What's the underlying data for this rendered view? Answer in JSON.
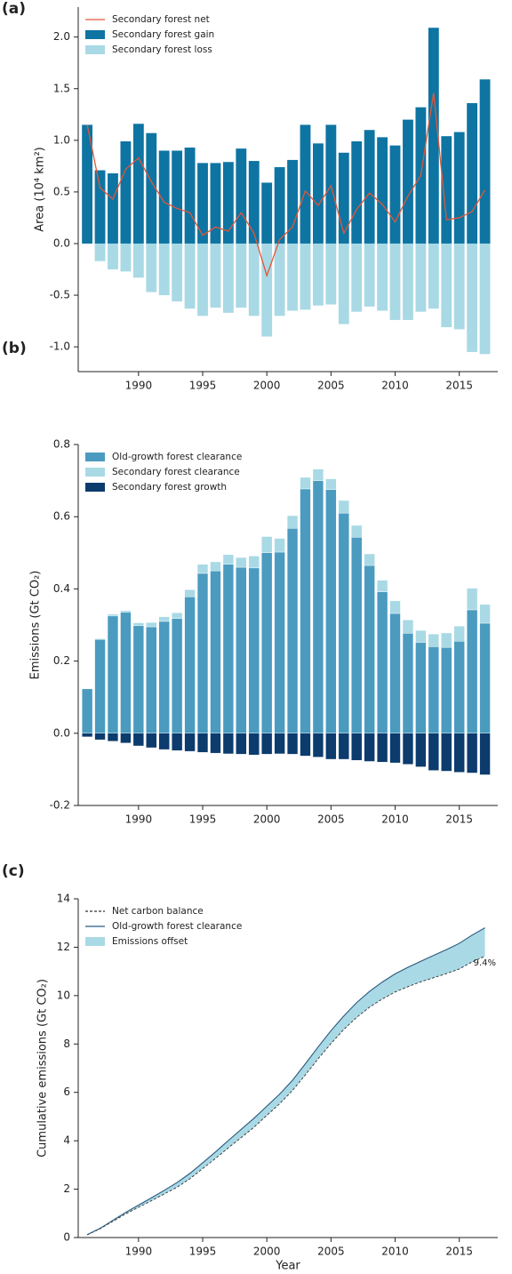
{
  "chart_data": [
    {
      "type": "bar",
      "label": "(a)",
      "ylabel": "Area (10⁴ km²)",
      "x": [
        1986,
        1987,
        1988,
        1989,
        1990,
        1991,
        1992,
        1993,
        1994,
        1995,
        1996,
        1997,
        1998,
        1999,
        2000,
        2001,
        2002,
        2003,
        2004,
        2005,
        2006,
        2007,
        2008,
        2009,
        2010,
        2011,
        2012,
        2013,
        2014,
        2015,
        2016,
        2017
      ],
      "xlim": [
        1985.3,
        2018
      ],
      "xticks": [
        1990,
        1995,
        2000,
        2005,
        2010,
        2015
      ],
      "ylim": [
        -1.24,
        2.29
      ],
      "yticks": [
        {
          "value": 2,
          "label": "2.0"
        },
        1.5,
        {
          "value": 1,
          "label": "1.0"
        },
        0.5,
        {
          "value": 0,
          "label": "0.0"
        },
        -0.5,
        {
          "value": -1,
          "label": "-1.0"
        }
      ],
      "series": [
        {
          "name": "Secondary forest net",
          "type": "line",
          "color": "#e0573a",
          "values": [
            1.15,
            0.54,
            0.43,
            0.72,
            0.83,
            0.6,
            0.4,
            0.34,
            0.3,
            0.08,
            0.16,
            0.12,
            0.3,
            0.1,
            -0.31,
            0.04,
            0.16,
            0.51,
            0.37,
            0.56,
            0.1,
            0.33,
            0.49,
            0.38,
            0.21,
            0.46,
            0.66,
            1.46,
            0.23,
            0.25,
            0.31,
            0.52
          ]
        },
        {
          "name": "Secondary forest gain",
          "type": "bar",
          "color": "#0e74a2",
          "values": [
            1.15,
            0.71,
            0.68,
            0.99,
            1.16,
            1.07,
            0.9,
            0.9,
            0.93,
            0.78,
            0.78,
            0.79,
            0.92,
            0.8,
            0.59,
            0.74,
            0.81,
            1.15,
            0.97,
            1.15,
            0.88,
            0.99,
            1.1,
            1.03,
            0.95,
            1.2,
            1.32,
            2.09,
            1.04,
            1.08,
            1.36,
            1.59
          ]
        },
        {
          "name": "Secondary forest loss",
          "type": "bar",
          "color": "#a9d9e5",
          "values": [
            0,
            -0.17,
            -0.25,
            -0.27,
            -0.33,
            -0.47,
            -0.5,
            -0.56,
            -0.63,
            -0.7,
            -0.62,
            -0.67,
            -0.62,
            -0.7,
            -0.9,
            -0.7,
            -0.65,
            -0.64,
            -0.6,
            -0.59,
            -0.78,
            -0.66,
            -0.61,
            -0.65,
            -0.74,
            -0.74,
            -0.66,
            -0.63,
            -0.81,
            -0.83,
            -1.05,
            -1.07
          ]
        }
      ]
    },
    {
      "type": "stacked_bar",
      "label": "(b)",
      "ylabel": "Emissions (Gt CO₂)",
      "x": [
        1986,
        1987,
        1988,
        1989,
        1990,
        1991,
        1992,
        1993,
        1994,
        1995,
        1996,
        1997,
        1998,
        1999,
        2000,
        2001,
        2002,
        2003,
        2004,
        2005,
        2006,
        2007,
        2008,
        2009,
        2010,
        2011,
        2012,
        2013,
        2014,
        2015,
        2016,
        2017
      ],
      "xlim": [
        1985.3,
        2018
      ],
      "xticks": [
        1990,
        1995,
        2000,
        2005,
        2010,
        2015
      ],
      "ylim": [
        -0.2,
        0.8
      ],
      "yticks": [
        0.8,
        0.6,
        0.4,
        0.2,
        {
          "value": 0,
          "label": "0.0"
        },
        -0.2
      ],
      "series": [
        {
          "name": "Old-growth forest clearance",
          "type": "bar",
          "color": "#4a9bbf",
          "values": [
            0.123,
            0.26,
            0.325,
            0.335,
            0.298,
            0.295,
            0.31,
            0.318,
            0.378,
            0.443,
            0.45,
            0.468,
            0.46,
            0.458,
            0.5,
            0.502,
            0.568,
            0.677,
            0.7,
            0.675,
            0.61,
            0.543,
            0.465,
            0.392,
            0.332,
            0.277,
            0.252,
            0.24,
            0.238,
            0.255,
            0.342,
            0.305
          ]
        },
        {
          "name": "Secondary forest clearance",
          "type": "bar",
          "color": "#a9d9e5",
          "values": [
            0,
            0.002,
            0.005,
            0.005,
            0.008,
            0.012,
            0.013,
            0.016,
            0.02,
            0.025,
            0.025,
            0.027,
            0.027,
            0.033,
            0.045,
            0.038,
            0.035,
            0.032,
            0.032,
            0.03,
            0.035,
            0.033,
            0.032,
            0.032,
            0.035,
            0.037,
            0.033,
            0.035,
            0.04,
            0.042,
            0.06,
            0.052
          ]
        },
        {
          "name": "Secondary forest growth",
          "type": "bar",
          "color": "#0c3b6d",
          "values": [
            -0.01,
            -0.018,
            -0.022,
            -0.027,
            -0.035,
            -0.04,
            -0.045,
            -0.048,
            -0.05,
            -0.053,
            -0.055,
            -0.057,
            -0.058,
            -0.06,
            -0.058,
            -0.057,
            -0.058,
            -0.063,
            -0.066,
            -0.072,
            -0.072,
            -0.075,
            -0.078,
            -0.08,
            -0.082,
            -0.086,
            -0.093,
            -0.103,
            -0.105,
            -0.108,
            -0.11,
            -0.115
          ]
        }
      ]
    },
    {
      "type": "area",
      "label": "(c)",
      "ylabel": "Cumulative emissions (Gt CO₂)",
      "xlabel": "Year",
      "x": [
        1986,
        1987,
        1988,
        1989,
        1990,
        1991,
        1992,
        1993,
        1994,
        1995,
        1996,
        1997,
        1998,
        1999,
        2000,
        2001,
        2002,
        2003,
        2004,
        2005,
        2006,
        2007,
        2008,
        2009,
        2010,
        2011,
        2012,
        2013,
        2014,
        2015,
        2016,
        2017
      ],
      "xlim": [
        1985.3,
        2018
      ],
      "xticks": [
        1990,
        1995,
        2000,
        2005,
        2010,
        2015
      ],
      "ylim": [
        0,
        14
      ],
      "yticks": [
        0,
        2,
        4,
        6,
        8,
        10,
        12,
        14
      ],
      "series": [
        {
          "name": "Net carbon balance",
          "type": "line",
          "linestyle": "dashed",
          "color": "#333333",
          "values": [
            0.11,
            0.36,
            0.67,
            0.98,
            1.25,
            1.52,
            1.8,
            2.08,
            2.43,
            2.85,
            3.27,
            3.71,
            4.13,
            4.56,
            5.05,
            5.53,
            6.08,
            6.72,
            7.39,
            8.02,
            8.6,
            9.1,
            9.52,
            9.86,
            10.15,
            10.37,
            10.57,
            10.74,
            10.91,
            11.1,
            11.39,
            11.63
          ]
        },
        {
          "name": "Old-growth forest clearance",
          "type": "line",
          "linestyle": "solid",
          "color": "#2b5a7d",
          "values": [
            0.12,
            0.38,
            0.71,
            1.04,
            1.34,
            1.64,
            1.95,
            2.27,
            2.65,
            3.09,
            3.54,
            4.01,
            4.47,
            4.93,
            5.43,
            5.93,
            6.5,
            7.18,
            7.88,
            8.55,
            9.16,
            9.71,
            10.17,
            10.56,
            10.9,
            11.17,
            11.42,
            11.66,
            11.9,
            12.16,
            12.5,
            12.8
          ]
        }
      ],
      "band": {
        "name": "Emissions offset",
        "color": "#a9d9e5"
      },
      "annotation": "9.4%"
    }
  ]
}
